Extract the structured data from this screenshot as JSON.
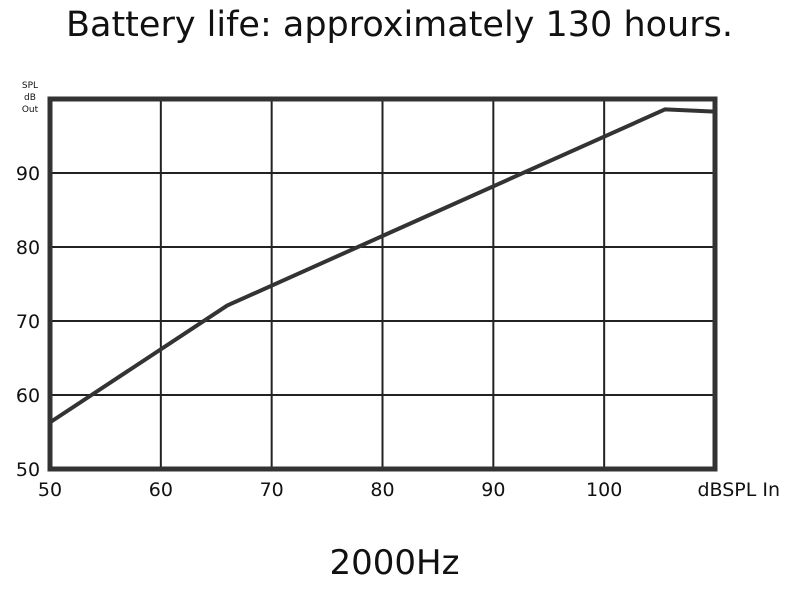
{
  "title": "Battery life: approximately 130 hours.",
  "footer": "2000Hz",
  "chart_data": {
    "type": "line",
    "title": "",
    "ylabel": [
      "SPL",
      "dB",
      "Out"
    ],
    "xlabel": "dBSPL In",
    "xlim": [
      50,
      110
    ],
    "ylim": [
      50,
      100
    ],
    "x_ticks": [
      50,
      60,
      70,
      80,
      90,
      100
    ],
    "y_ticks": [
      50,
      60,
      70,
      80,
      90
    ],
    "grid": true,
    "series": [
      {
        "x": [
          50,
          66,
          105.5,
          110
        ],
        "y": [
          56.3,
          72.1,
          98.6,
          98.3
        ]
      }
    ],
    "colors": {
      "line": "#333333",
      "frame": "#333333",
      "grid": "#222222"
    }
  }
}
